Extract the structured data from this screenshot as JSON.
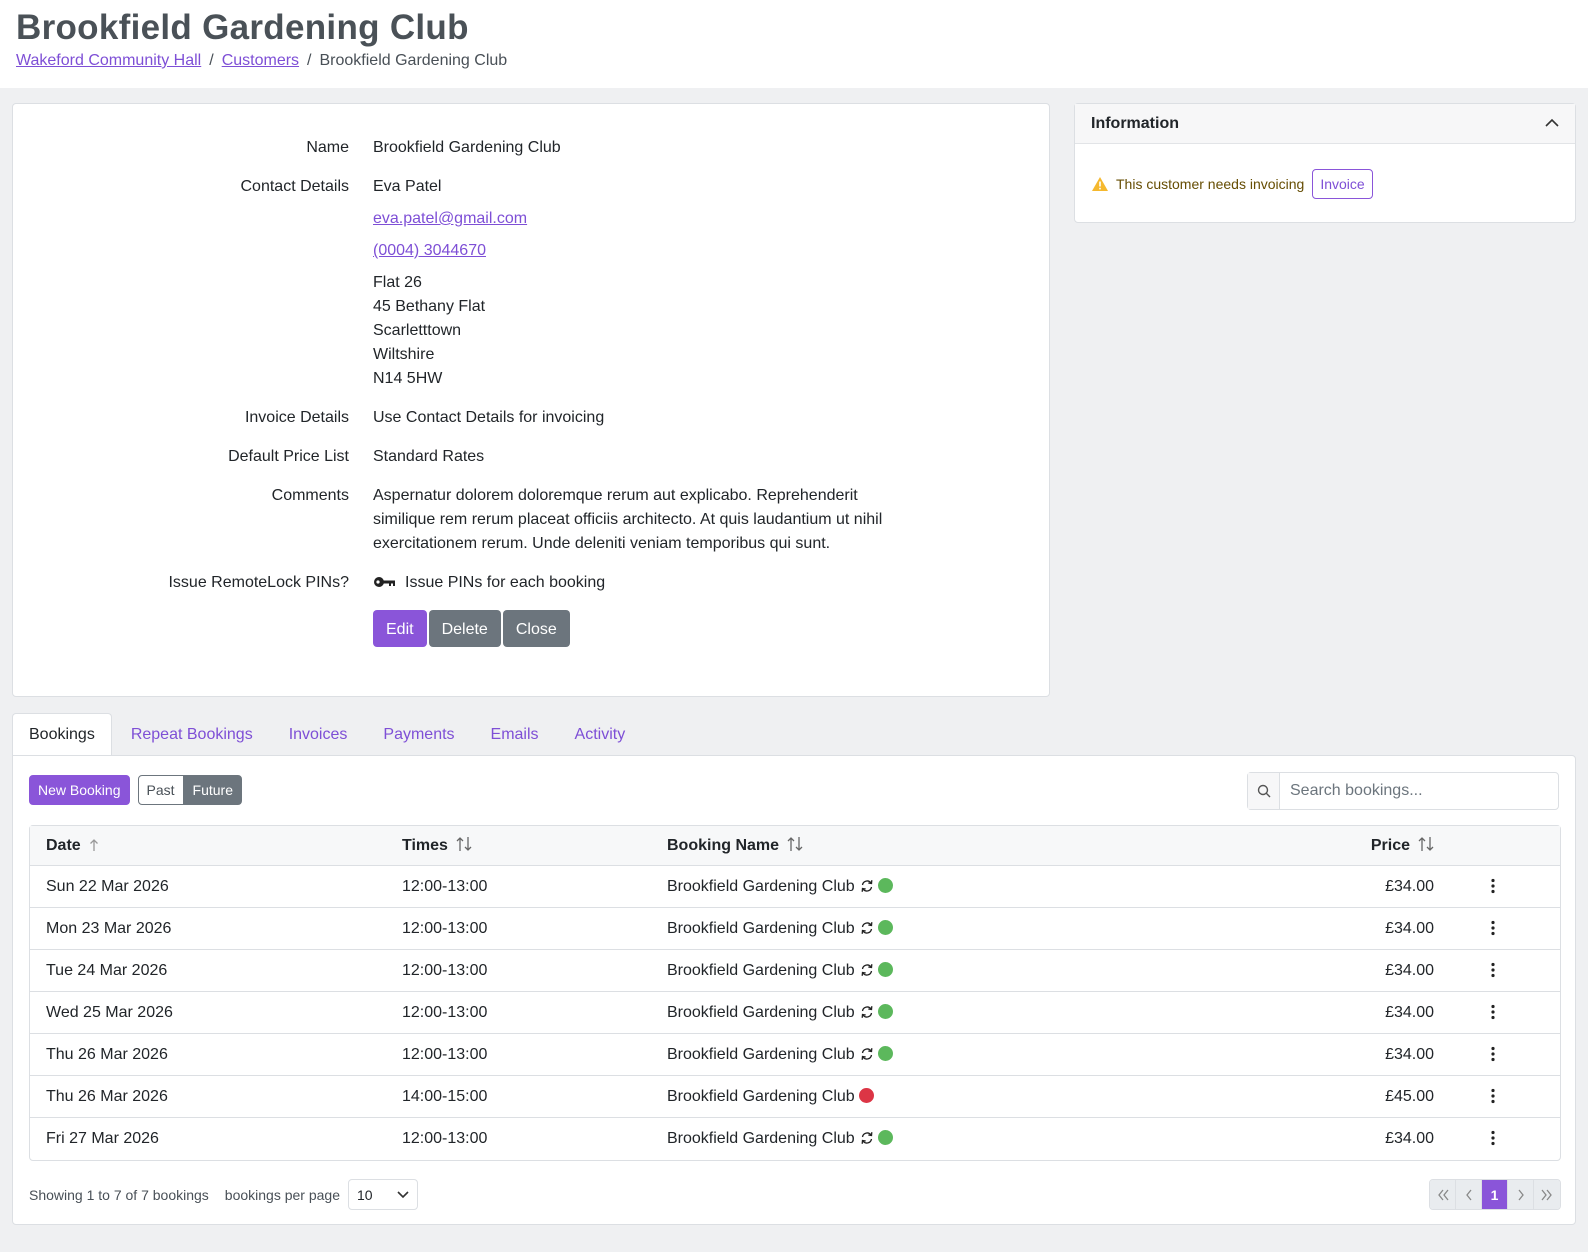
{
  "header": {
    "title": "Brookfield Gardening Club",
    "breadcrumb": {
      "separator": "/",
      "links": [
        "Wakeford Community Hall",
        "Customers"
      ],
      "current": "Brookfield Gardening Club"
    }
  },
  "details": {
    "name": {
      "label": "Name",
      "value": "Brookfield Gardening Club"
    },
    "contact": {
      "label": "Contact Details",
      "person": "Eva Patel",
      "email": "eva.patel@gmail.com",
      "phone": "(0004) 3044670",
      "address": [
        "Flat 26",
        "45 Bethany Flat",
        "Scarletttown",
        "Wiltshire",
        "N14 5HW"
      ]
    },
    "invoice": {
      "label": "Invoice Details",
      "value": "Use Contact Details for invoicing"
    },
    "price_list": {
      "label": "Default Price List",
      "value": "Standard Rates"
    },
    "comments": {
      "label": "Comments",
      "value": "Aspernatur dolorem doloremque rerum aut explicabo. Reprehenderit similique rem rerum placeat officiis architecto. At quis laudantium ut nihil exercitationem rerum. Unde deleniti veniam temporibus qui sunt."
    },
    "pins": {
      "label": "Issue RemoteLock PINs?",
      "value": "Issue PINs for each booking"
    },
    "buttons": [
      "Edit",
      "Delete",
      "Close"
    ]
  },
  "information": {
    "title": "Information",
    "message": "This customer needs invoicing",
    "button": "Invoice"
  },
  "tabs": {
    "items": [
      "Bookings",
      "Repeat Bookings",
      "Invoices",
      "Payments",
      "Emails",
      "Activity"
    ],
    "active": 0
  },
  "bookings": {
    "new_button": "New Booking",
    "filter": {
      "options": [
        "Past",
        "Future"
      ],
      "active": 1
    },
    "search_placeholder": "Search bookings...",
    "table": {
      "columns": [
        "Date",
        "Times",
        "Booking Name",
        "Price"
      ],
      "sorted": 0,
      "rows": [
        {
          "date": "Sun 22 Mar 2026",
          "times": "12:00-13:00",
          "name": "Brookfield Gardening Club",
          "repeat": true,
          "status_color": "#5cb85c",
          "price": "£34.00"
        },
        {
          "date": "Mon 23 Mar 2026",
          "times": "12:00-13:00",
          "name": "Brookfield Gardening Club",
          "repeat": true,
          "status_color": "#5cb85c",
          "price": "£34.00"
        },
        {
          "date": "Tue 24 Mar 2026",
          "times": "12:00-13:00",
          "name": "Brookfield Gardening Club",
          "repeat": true,
          "status_color": "#5cb85c",
          "price": "£34.00"
        },
        {
          "date": "Wed 25 Mar 2026",
          "times": "12:00-13:00",
          "name": "Brookfield Gardening Club",
          "repeat": true,
          "status_color": "#5cb85c",
          "price": "£34.00"
        },
        {
          "date": "Thu 26 Mar 2026",
          "times": "12:00-13:00",
          "name": "Brookfield Gardening Club",
          "repeat": true,
          "status_color": "#5cb85c",
          "price": "£34.00"
        },
        {
          "date": "Thu 26 Mar 2026",
          "times": "14:00-15:00",
          "name": "Brookfield Gardening Club",
          "repeat": false,
          "status_color": "#dc3545",
          "price": "£45.00"
        },
        {
          "date": "Fri 27 Mar 2026",
          "times": "12:00-13:00",
          "name": "Brookfield Gardening Club",
          "repeat": true,
          "status_color": "#5cb85c",
          "price": "£34.00"
        }
      ]
    },
    "footer": {
      "summary": "Showing 1 to 7 of 7 bookings",
      "per_page_label": "bookings per page",
      "per_page": 10,
      "page": 1
    }
  }
}
